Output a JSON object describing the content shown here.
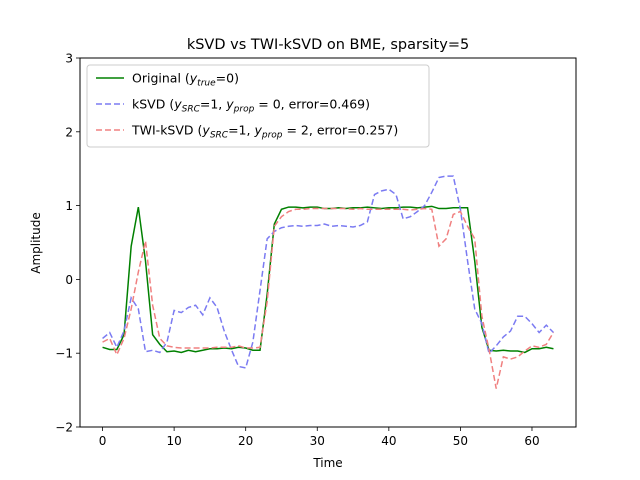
{
  "chart_data": {
    "type": "line",
    "title": "kSVD vs TWI-kSVD on BME, sparsity=5",
    "xlabel": "Time",
    "ylabel": "Amplitude",
    "xlim": [
      -3.15,
      66.15
    ],
    "ylim": [
      -2,
      3
    ],
    "xticks": [
      0,
      10,
      20,
      30,
      40,
      50,
      60
    ],
    "yticks": [
      -2,
      -1,
      0,
      1,
      2,
      3
    ],
    "grid": false,
    "legend_position": "top-left",
    "series": [
      {
        "name": "Original",
        "legend": {
          "prefix": "Original (",
          "var": "y",
          "sub": "true",
          "suffix": "=0)"
        },
        "color": "#008000",
        "dash": "solid",
        "values": [
          -0.92,
          -0.95,
          -0.95,
          -0.75,
          0.45,
          0.98,
          0.25,
          -0.75,
          -0.88,
          -0.98,
          -0.97,
          -0.99,
          -0.96,
          -0.98,
          -0.96,
          -0.94,
          -0.94,
          -0.93,
          -0.94,
          -0.92,
          -0.93,
          -0.96,
          -0.96,
          -0.2,
          0.75,
          0.95,
          0.98,
          0.98,
          0.97,
          0.98,
          0.98,
          0.96,
          0.96,
          0.97,
          0.96,
          0.97,
          0.97,
          0.98,
          0.97,
          0.96,
          0.97,
          0.97,
          0.98,
          0.98,
          0.97,
          0.98,
          0.99,
          0.96,
          0.96,
          0.97,
          0.97,
          0.97,
          0.25,
          -0.65,
          -0.96,
          -0.97,
          -0.96,
          -0.97,
          -0.97,
          -0.99,
          -0.94,
          -0.94,
          -0.92,
          -0.94
        ]
      },
      {
        "name": "kSVD",
        "legend": {
          "prefix": "kSVD (",
          "var": "y",
          "sub": "SRC",
          "mid": "=1, ",
          "var2": "y",
          "sub2": "prop",
          "suffix": " = 0, error=0.469)"
        },
        "color": "#7b7bf2",
        "dash": "6,3",
        "values": [
          -0.8,
          -0.72,
          -0.92,
          -0.7,
          -0.25,
          -0.4,
          -0.98,
          -0.96,
          -0.99,
          -0.85,
          -0.42,
          -0.45,
          -0.38,
          -0.35,
          -0.48,
          -0.25,
          -0.38,
          -0.7,
          -0.95,
          -1.18,
          -1.2,
          -0.85,
          -0.15,
          0.55,
          0.65,
          0.7,
          0.72,
          0.73,
          0.72,
          0.73,
          0.73,
          0.75,
          0.72,
          0.73,
          0.72,
          0.71,
          0.73,
          0.78,
          1.15,
          1.2,
          1.22,
          1.15,
          0.82,
          0.85,
          0.92,
          1.0,
          1.18,
          1.38,
          1.4,
          1.4,
          0.95,
          0.25,
          -0.4,
          -0.6,
          -1.0,
          -0.9,
          -0.78,
          -0.7,
          -0.5,
          -0.5,
          -0.6,
          -0.72,
          -0.62,
          -0.72
        ]
      },
      {
        "name": "TWI-kSVD",
        "legend": {
          "prefix": "TWI-kSVD (",
          "var": "y",
          "sub": "SRC",
          "mid": "=1, ",
          "var2": "y",
          "sub2": "prop",
          "suffix": " = 2, error=0.257)"
        },
        "color": "#f08080",
        "dash": "6,3",
        "values": [
          -0.85,
          -0.8,
          -1.02,
          -0.8,
          -0.4,
          0.1,
          0.52,
          -0.35,
          -0.8,
          -0.9,
          -0.92,
          -0.93,
          -0.93,
          -0.93,
          -0.93,
          -0.93,
          -0.92,
          -0.92,
          -0.92,
          -0.9,
          -0.93,
          -0.93,
          -0.92,
          -0.3,
          0.72,
          0.85,
          0.92,
          0.95,
          0.95,
          0.96,
          0.96,
          0.96,
          0.96,
          0.96,
          0.96,
          0.95,
          0.96,
          0.95,
          0.95,
          0.95,
          0.95,
          0.95,
          0.95,
          0.94,
          0.95,
          0.96,
          0.95,
          0.45,
          0.55,
          0.88,
          0.92,
          0.72,
          0.55,
          -0.5,
          -0.95,
          -1.48,
          -1.05,
          -1.08,
          -1.05,
          -0.97,
          -0.9,
          -0.92,
          -0.88,
          -0.72
        ]
      }
    ]
  }
}
